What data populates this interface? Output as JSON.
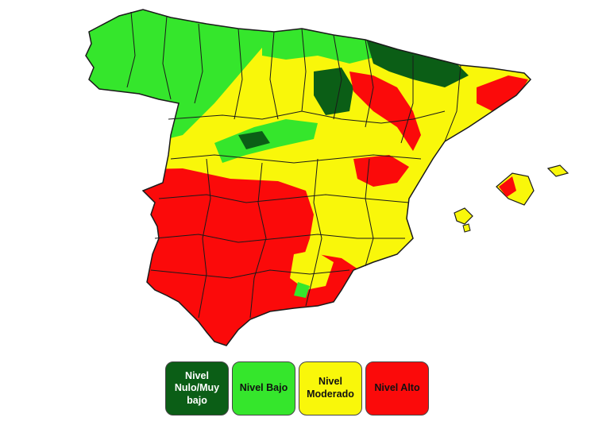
{
  "colors": {
    "nulo": "#0b5e16",
    "bajo": "#35e62c",
    "moderado": "#f9f70a",
    "alto": "#fb0a0a",
    "border": "#1a1a1a"
  },
  "legend": [
    {
      "label": "Nivel\nNulo/Muy\nbajo",
      "color": "#0b5e16",
      "text_color": "#ffffff"
    },
    {
      "label": "Nivel Bajo",
      "color": "#35e62c",
      "text_color": "#111111"
    },
    {
      "label": "Nivel\nModerado",
      "color": "#f9f70a",
      "text_color": "#111111"
    },
    {
      "label": "Nivel Alto",
      "color": "#fb0a0a",
      "text_color": "#111111"
    }
  ]
}
